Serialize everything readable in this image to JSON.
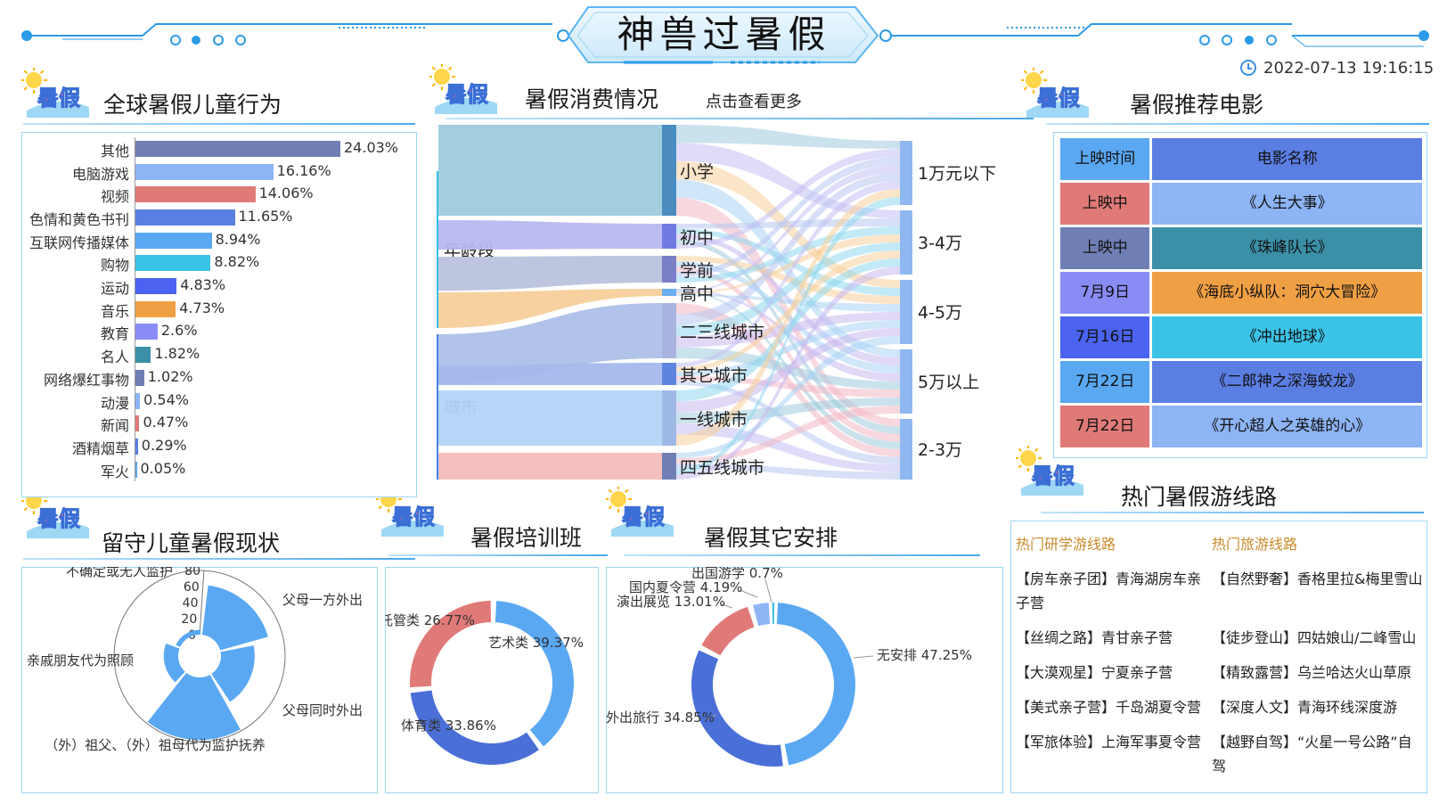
{
  "header": {
    "title": "神兽过暑假",
    "datetime": "2022-07-13 19:16:15"
  },
  "sections": {
    "behavior": "全球暑假儿童行为",
    "consumption": "暑假消费情况",
    "consumption_link": "点击查看更多",
    "movies": "暑假推荐电影",
    "left_behind": "留守儿童暑假现状",
    "training": "暑假培训班",
    "other": "暑假其它安排",
    "routes": "热门暑假游线路"
  },
  "badge_text": "暑假",
  "behavior": [
    {
      "label": "其他",
      "value": 24.03,
      "text": "24.03%",
      "color": "#6f7fb5"
    },
    {
      "label": "电脑游戏",
      "value": 16.16,
      "text": "16.16%",
      "color": "#8db4f5"
    },
    {
      "label": "视频",
      "value": 14.06,
      "text": "14.06%",
      "color": "#e07a78"
    },
    {
      "label": "色情和黄色书刊",
      "value": 11.65,
      "text": "11.65%",
      "color": "#5b7ee3"
    },
    {
      "label": "互联网传播媒体",
      "value": 8.94,
      "text": "8.94%",
      "color": "#5aa8f2"
    },
    {
      "label": "购物",
      "value": 8.82,
      "text": "8.82%",
      "color": "#3ac3e6"
    },
    {
      "label": "运动",
      "value": 4.83,
      "text": "4.83%",
      "color": "#4b63f0"
    },
    {
      "label": "音乐",
      "value": 4.73,
      "text": "4.73%",
      "color": "#f0a044"
    },
    {
      "label": "教育",
      "value": 2.6,
      "text": "2.6%",
      "color": "#8a8cf5"
    },
    {
      "label": "名人",
      "value": 1.82,
      "text": "1.82%",
      "color": "#3b90a8"
    },
    {
      "label": "网络爆红事物",
      "value": 1.02,
      "text": "1.02%",
      "color": "#6f7fb5"
    },
    {
      "label": "动漫",
      "value": 0.54,
      "text": "0.54%",
      "color": "#8db4f5"
    },
    {
      "label": "新闻",
      "value": 0.47,
      "text": "0.47%",
      "color": "#e07a78"
    },
    {
      "label": "酒精烟草",
      "value": 0.29,
      "text": "0.29%",
      "color": "#5b7ee3"
    },
    {
      "label": "军火",
      "value": 0.05,
      "text": "0.05%",
      "color": "#5aa8f2"
    }
  ],
  "sankey": {
    "sources": [
      {
        "label": "年龄段",
        "value": 100,
        "color": "#36c0ee"
      },
      {
        "label": "城市",
        "value": 100,
        "color": "#4485f0"
      }
    ],
    "middle": [
      {
        "label": "小学",
        "parent": 0,
        "value": 58,
        "color": "#4a8cc0",
        "band": "#9ecbdc"
      },
      {
        "label": "初中",
        "parent": 0,
        "value": 15,
        "color": "#6f7be0",
        "band": "#b8b8f0"
      },
      {
        "label": "学前",
        "parent": 0,
        "value": 18,
        "color": "#7a7fc8",
        "band": "#b9c3dc"
      },
      {
        "label": "高中",
        "parent": 0,
        "value": 6,
        "color": "#6aaef2",
        "band": "#f7cf9a"
      },
      {
        "label": "二三线城市",
        "parent": 1,
        "value": 34,
        "color": "#aab4e0",
        "band": "#aec0e8"
      },
      {
        "label": "其它城市",
        "parent": 1,
        "value": 14,
        "color": "#5f84e0",
        "band": "#a4b8ec"
      },
      {
        "label": "一线城市",
        "parent": 1,
        "value": 36,
        "color": "#9fb9e6",
        "band": "#b3d3f5"
      },
      {
        "label": "四五线城市",
        "parent": 1,
        "value": 18,
        "color": "#6f7fb5",
        "band": "#f2bcbc"
      }
    ],
    "targets": [
      {
        "label": "1万元以下",
        "value": 38,
        "color": "#8fb8f0"
      },
      {
        "label": "3-4万",
        "value": 38,
        "color": "#8fb8f0"
      },
      {
        "label": "4-5万",
        "value": 38,
        "color": "#8fb8f0"
      },
      {
        "label": "5万以上",
        "value": 38,
        "color": "#8fb8f0"
      },
      {
        "label": "2-3万",
        "value": 38,
        "color": "#8fb8f0"
      }
    ],
    "flow_colors": [
      "#9ecbdc",
      "#c4c0f4",
      "#f7cf9a",
      "#a9d3f4",
      "#f2b8c4",
      "#b8c6f0",
      "#8fd8ee",
      "#c9b8ee"
    ]
  },
  "movies": {
    "headers": [
      "上映时间",
      "电影名称"
    ],
    "header_colors": [
      "#5aa8f2",
      "#5b7ee3"
    ],
    "rows": [
      {
        "date": "上映中",
        "name": "《人生大事》",
        "date_color": "#e07a78",
        "name_color": "#8db4f5"
      },
      {
        "date": "上映中",
        "name": "《珠峰队长》",
        "date_color": "#6f7fb5",
        "name_color": "#3b90a8"
      },
      {
        "date": "7月9日",
        "name": "《海底小纵队：洞穴大冒险》",
        "date_color": "#8a8cf5",
        "name_color": "#f0a044"
      },
      {
        "date": "7月16日",
        "name": "《冲出地球》",
        "date_color": "#4b63f0",
        "name_color": "#3ac3e6"
      },
      {
        "date": "7月22日",
        "name": "《二郎神之深海蛟龙》",
        "date_color": "#5aa8f2",
        "name_color": "#5b7ee3"
      },
      {
        "date": "7月22日",
        "name": "《开心超人之英雄的心》",
        "date_color": "#e07a78",
        "name_color": "#8db4f5"
      }
    ]
  },
  "left_behind": {
    "axis_ticks": [
      "80",
      "60",
      "40",
      "20",
      "0"
    ],
    "max": 80,
    "categories": [
      {
        "label": "父母一方外出",
        "value": 62
      },
      {
        "label": "父母同时外出",
        "value": 42
      },
      {
        "label": "（外）祖父、（外）祖母代为监护抚养",
        "value": 78
      },
      {
        "label": "亲戚朋友代为照顾",
        "value": 18
      },
      {
        "label": "不确定或无人监护",
        "value": 6
      }
    ],
    "color": "#5aa8f2"
  },
  "training": [
    {
      "label": "艺术类",
      "value": 39.37,
      "text": "艺术类 39.37%",
      "color": "#5aa8f2"
    },
    {
      "label": "体育类",
      "value": 33.86,
      "text": "体育类 33.86%",
      "color": "#4a6fd6"
    },
    {
      "label": "托管类",
      "value": 26.77,
      "text": "托管类 26.77%",
      "color": "#e07a78"
    }
  ],
  "other": [
    {
      "label": "无安排",
      "value": 47.25,
      "text": "无安排 47.25%",
      "color": "#5aa8f2"
    },
    {
      "label": "外出旅行",
      "value": 34.85,
      "text": "外出旅行 34.85%",
      "color": "#4a6fd6"
    },
    {
      "label": "演出展览",
      "value": 13.01,
      "text": "演出展览 13.01%",
      "color": "#e07a78"
    },
    {
      "label": "国内夏令营",
      "value": 4.19,
      "text": "国内夏令营 4.19%",
      "color": "#8db4f5"
    },
    {
      "label": "出国游学",
      "value": 0.7,
      "text": "出国游学 0.7%",
      "color": "#3ac3e6"
    }
  ],
  "routes": {
    "study_title": "热门研学游线路",
    "travel_title": "热门旅游线路",
    "study": [
      "【房车亲子团】青海湖房车亲子营",
      "【丝绸之路】青甘亲子营",
      "【大漠观星】宁夏亲子营",
      "【美式亲子营】千岛湖夏令营",
      "【军旅体验】上海军事夏令营"
    ],
    "travel": [
      "【自然野奢】香格里拉&梅里雪山",
      "【徒步登山】四姑娘山/二峰雪山",
      "【精致露营】乌兰哈达火山草原",
      "【深度人文】青海环线深度游",
      "【越野自驾】“火星一号公路”自驾"
    ]
  }
}
